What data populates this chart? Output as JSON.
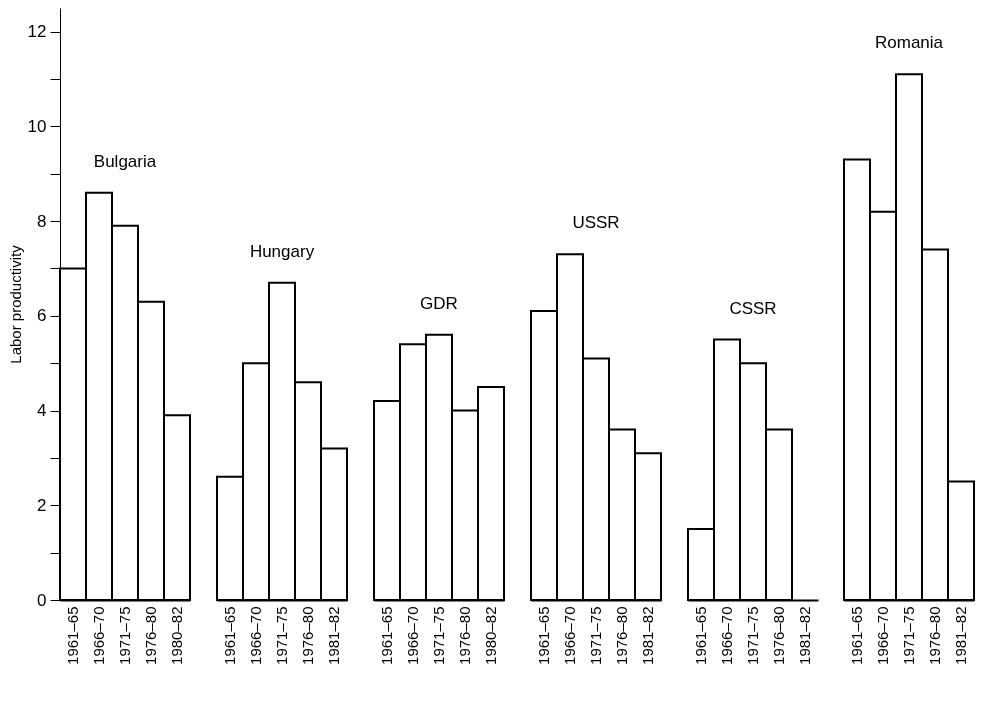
{
  "chart_data": [
    {
      "type": "bar",
      "ylabel": "Labor productivity",
      "categories": [
        "1961–65",
        "1966–70",
        "1971–75",
        "1976–80",
        "1980–82"
      ],
      "values": [
        7.0,
        8.6,
        7.9,
        6.3,
        3.9
      ],
      "color": "#ffffff",
      "ylim": [
        0,
        12.5
      ],
      "yticks": [
        0,
        {
          "value": 1,
          "label": null
        },
        2,
        {
          "value": 3,
          "label": null
        },
        4,
        {
          "value": 5,
          "label": null
        },
        6,
        {
          "value": 7,
          "label": null
        },
        8,
        {
          "value": 9,
          "label": null
        },
        10,
        {
          "value": 11,
          "label": null
        },
        12
      ],
      "grid": false,
      "annotations": [
        "Bulgaria"
      ]
    },
    {
      "type": "bar",
      "categories": [
        "1961–65",
        "1966–70",
        "1971–75",
        "1976–80",
        "1981–82"
      ],
      "values": [
        2.6,
        5.0,
        6.7,
        4.6,
        3.2
      ],
      "color": "#ffffff",
      "ylim": [
        0,
        12
      ],
      "yticks": [
        0,
        2,
        4,
        6,
        8,
        10,
        12
      ],
      "grid": false,
      "tick_labels": "x",
      "annotations": [
        "Hungary"
      ]
    },
    {
      "type": "bar",
      "categories": [
        "1961–65",
        "1966–70",
        "1971–75",
        "1976–80",
        "1980–82"
      ],
      "values": [
        4.2,
        5.4,
        5.6,
        4.0,
        4.5
      ],
      "color": "#ffffff",
      "ylim": [
        0,
        12
      ],
      "yticks": [
        0,
        2,
        4,
        6,
        8,
        10,
        12
      ],
      "grid": false,
      "tick_labels": "x",
      "annotations": [
        "GDR"
      ]
    },
    {
      "type": "bar",
      "categories": [
        "1961–65",
        "1966–70",
        "1971–75",
        "1976–80",
        "1981–82"
      ],
      "values": [
        6.1,
        7.3,
        5.1,
        3.6,
        3.1
      ],
      "color": "#ffffff",
      "ylim": [
        0,
        12
      ],
      "yticks": [
        0,
        2,
        4,
        6,
        8,
        10,
        12
      ],
      "grid": false,
      "tick_labels": "x",
      "annotations": [
        "USSR"
      ]
    },
    {
      "type": "bar",
      "categories": [
        "1961–65",
        "1966–70",
        "1971–75",
        "1976–80",
        "1981–82"
      ],
      "values": [
        1.5,
        5.5,
        5.0,
        3.6,
        null
      ],
      "color": "#ffffff",
      "ylim": [
        0,
        12
      ],
      "yticks": [
        0,
        2,
        4,
        6,
        8,
        10,
        12
      ],
      "grid": false,
      "tick_labels": "x",
      "annotations": [
        "CSSR"
      ]
    },
    {
      "type": "bar",
      "categories": [
        "1961–65",
        "1966–70",
        "1971–75",
        "1976–80",
        "1981–82"
      ],
      "values": [
        9.3,
        8.2,
        11.1,
        7.4,
        2.5
      ],
      "color": "#ffffff",
      "ylim": [
        0,
        12
      ],
      "yticks": [
        0,
        2,
        4,
        6,
        8,
        10,
        12
      ],
      "grid": false,
      "tick_labels": "x",
      "annotations": [
        "Romania"
      ]
    }
  ]
}
